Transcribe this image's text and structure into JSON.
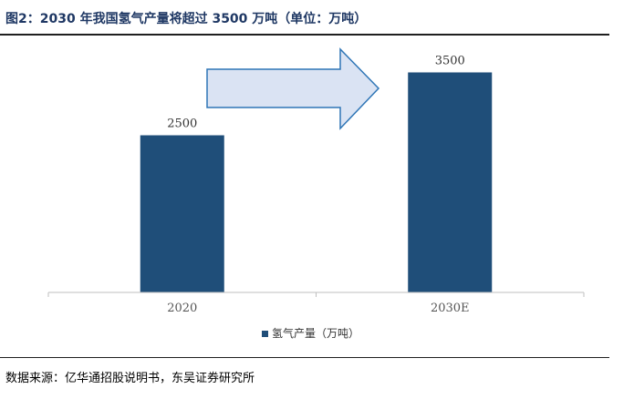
{
  "figure": {
    "title": "图2：2030 年我国氢气产量将超过 3500 万吨（单位：万吨）",
    "source": "数据来源：亿华通招股说明书，东吴证券研究所"
  },
  "chart_data": {
    "type": "bar",
    "categories": [
      "2020",
      "2030E"
    ],
    "series": [
      {
        "name": "氢气产量（万吨）",
        "values": [
          2500,
          3500
        ],
        "color": "#1f4e79"
      }
    ],
    "data_labels": [
      "2500",
      "3500"
    ],
    "ylim": [
      0,
      4000
    ],
    "grid": false,
    "legend": "bottom-center",
    "annotation": {
      "shape": "right-arrow",
      "color": "#dae3f3",
      "stroke": "#2e75b6"
    }
  }
}
